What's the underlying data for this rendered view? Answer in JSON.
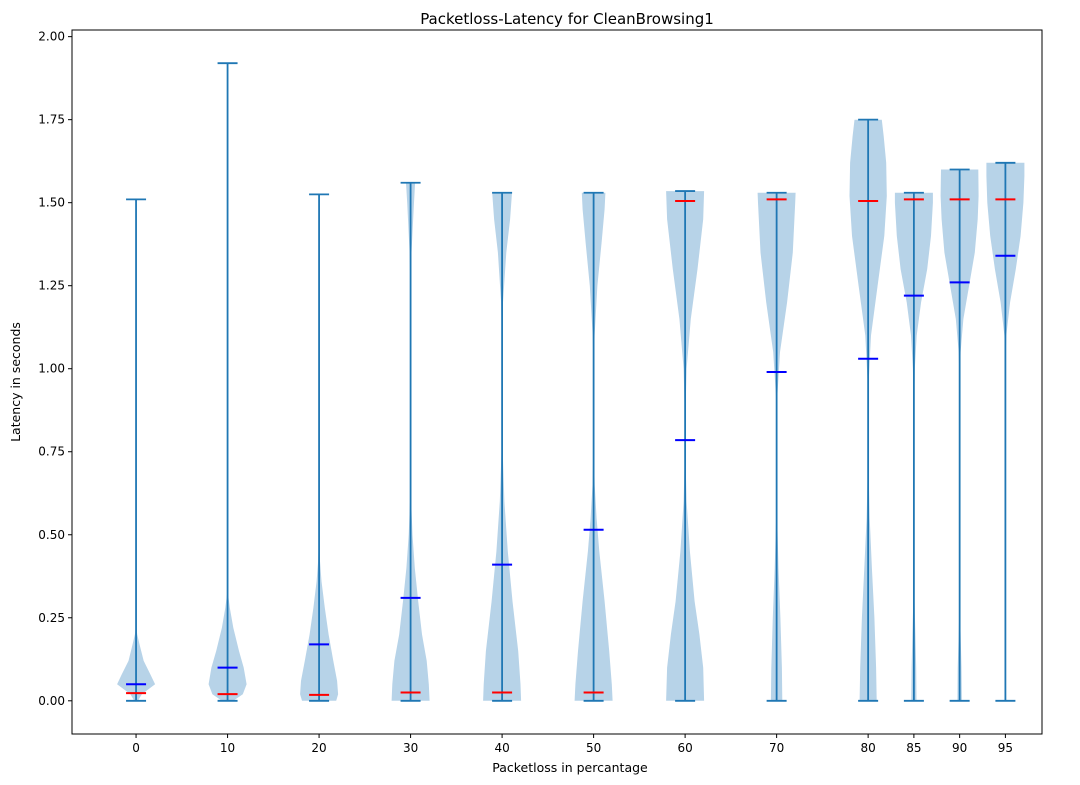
{
  "chart_data": {
    "type": "violin",
    "title": "Packetloss-Latency for CleanBrowsing1",
    "xlabel": "Packetloss in percantage",
    "ylabel": "Latency in seconds",
    "ylim": [
      -0.1,
      2.02
    ],
    "yticks": [
      0.0,
      0.25,
      0.5,
      0.75,
      1.0,
      1.25,
      1.5,
      1.75,
      2.0
    ],
    "ytick_labels": [
      "0.00",
      "0.25",
      "0.50",
      "0.75",
      "1.00",
      "1.25",
      "1.50",
      "1.75",
      "2.00"
    ],
    "xlim": [
      -7,
      99
    ],
    "grid": false,
    "legend": "none",
    "colors": {
      "violin_fill": "#b7d3e8",
      "violin_line": "#1f77b4",
      "mean_marker": "#0000ff",
      "median_marker": "#ff0000"
    },
    "violins": [
      {
        "label": "0",
        "x": 0,
        "min": 0.0,
        "max": 1.51,
        "mean": 0.05,
        "median": 0.023,
        "profile": [
          [
            0.0,
            0.1
          ],
          [
            0.02,
            0.3
          ],
          [
            0.05,
            1.0
          ],
          [
            0.08,
            0.75
          ],
          [
            0.12,
            0.4
          ],
          [
            0.17,
            0.18
          ],
          [
            0.2,
            0.06
          ],
          [
            0.23,
            0.0
          ],
          [
            1.51,
            0.0
          ]
        ]
      },
      {
        "label": "10",
        "x": 10,
        "min": 0.0,
        "max": 1.92,
        "mean": 0.1,
        "median": 0.02,
        "profile": [
          [
            0.0,
            0.3
          ],
          [
            0.02,
            0.8
          ],
          [
            0.05,
            1.0
          ],
          [
            0.1,
            0.85
          ],
          [
            0.15,
            0.6
          ],
          [
            0.22,
            0.3
          ],
          [
            0.28,
            0.12
          ],
          [
            0.32,
            0.03
          ],
          [
            0.36,
            0.0
          ],
          [
            1.92,
            0.0
          ]
        ]
      },
      {
        "label": "20",
        "x": 20,
        "min": 0.0,
        "max": 1.525,
        "mean": 0.17,
        "median": 0.018,
        "profile": [
          [
            0.0,
            0.9
          ],
          [
            0.02,
            1.0
          ],
          [
            0.06,
            0.95
          ],
          [
            0.12,
            0.75
          ],
          [
            0.2,
            0.5
          ],
          [
            0.28,
            0.3
          ],
          [
            0.36,
            0.13
          ],
          [
            0.42,
            0.05
          ],
          [
            0.5,
            0.0
          ],
          [
            1.5,
            0.0
          ],
          [
            1.525,
            0.04
          ]
        ]
      },
      {
        "label": "30",
        "x": 30,
        "min": 0.0,
        "max": 1.56,
        "mean": 0.31,
        "median": 0.025,
        "profile": [
          [
            0.0,
            1.0
          ],
          [
            0.05,
            0.96
          ],
          [
            0.12,
            0.85
          ],
          [
            0.2,
            0.6
          ],
          [
            0.3,
            0.4
          ],
          [
            0.4,
            0.22
          ],
          [
            0.5,
            0.1
          ],
          [
            0.6,
            0.03
          ],
          [
            0.7,
            0.0
          ],
          [
            1.2,
            0.0
          ],
          [
            1.35,
            0.05
          ],
          [
            1.5,
            0.18
          ],
          [
            1.56,
            0.24
          ]
        ]
      },
      {
        "label": "40",
        "x": 40,
        "min": 0.0,
        "max": 1.53,
        "mean": 0.41,
        "median": 0.025,
        "profile": [
          [
            0.0,
            1.0
          ],
          [
            0.05,
            0.97
          ],
          [
            0.15,
            0.85
          ],
          [
            0.3,
            0.55
          ],
          [
            0.45,
            0.3
          ],
          [
            0.6,
            0.12
          ],
          [
            0.75,
            0.03
          ],
          [
            0.85,
            0.0
          ],
          [
            1.05,
            0.0
          ],
          [
            1.2,
            0.05
          ],
          [
            1.35,
            0.22
          ],
          [
            1.45,
            0.42
          ],
          [
            1.53,
            0.52
          ]
        ]
      },
      {
        "label": "50",
        "x": 50,
        "min": 0.0,
        "max": 1.53,
        "mean": 0.515,
        "median": 0.025,
        "profile": [
          [
            0.0,
            1.0
          ],
          [
            0.05,
            0.96
          ],
          [
            0.15,
            0.82
          ],
          [
            0.3,
            0.58
          ],
          [
            0.45,
            0.3
          ],
          [
            0.55,
            0.16
          ],
          [
            0.65,
            0.06
          ],
          [
            0.75,
            0.02
          ],
          [
            0.88,
            0.0
          ],
          [
            0.98,
            0.0
          ],
          [
            1.1,
            0.05
          ],
          [
            1.25,
            0.2
          ],
          [
            1.38,
            0.42
          ],
          [
            1.48,
            0.58
          ],
          [
            1.53,
            0.62
          ]
        ]
      },
      {
        "label": "60",
        "x": 60,
        "min": 0.0,
        "max": 1.535,
        "mean": 0.785,
        "median": 1.505,
        "profile": [
          [
            0.0,
            1.0
          ],
          [
            0.1,
            0.95
          ],
          [
            0.2,
            0.75
          ],
          [
            0.3,
            0.5
          ],
          [
            0.45,
            0.25
          ],
          [
            0.6,
            0.08
          ],
          [
            0.75,
            0.01
          ],
          [
            0.85,
            0.01
          ],
          [
            1.0,
            0.08
          ],
          [
            1.15,
            0.3
          ],
          [
            1.3,
            0.65
          ],
          [
            1.45,
            0.95
          ],
          [
            1.535,
            1.0
          ]
        ]
      },
      {
        "label": "70",
        "x": 70,
        "min": 0.0,
        "max": 1.53,
        "mean": 0.99,
        "median": 1.51,
        "profile": [
          [
            0.0,
            0.3
          ],
          [
            0.1,
            0.28
          ],
          [
            0.25,
            0.2
          ],
          [
            0.4,
            0.1
          ],
          [
            0.55,
            0.03
          ],
          [
            0.7,
            0.0
          ],
          [
            0.8,
            0.0
          ],
          [
            0.92,
            0.04
          ],
          [
            1.05,
            0.18
          ],
          [
            1.2,
            0.55
          ],
          [
            1.35,
            0.85
          ],
          [
            1.5,
            0.98
          ],
          [
            1.53,
            1.0
          ]
        ]
      },
      {
        "label": "80",
        "x": 80,
        "min": 0.0,
        "max": 1.75,
        "mean": 1.03,
        "median": 1.505,
        "profile": [
          [
            0.0,
            0.45
          ],
          [
            0.1,
            0.42
          ],
          [
            0.25,
            0.33
          ],
          [
            0.4,
            0.2
          ],
          [
            0.55,
            0.08
          ],
          [
            0.7,
            0.02
          ],
          [
            0.85,
            0.0
          ],
          [
            0.95,
            0.02
          ],
          [
            1.1,
            0.15
          ],
          [
            1.25,
            0.5
          ],
          [
            1.4,
            0.85
          ],
          [
            1.52,
            0.98
          ],
          [
            1.62,
            0.95
          ],
          [
            1.7,
            0.82
          ],
          [
            1.75,
            0.72
          ]
        ]
      },
      {
        "label": "85",
        "x": 85,
        "min": 0.0,
        "max": 1.53,
        "mean": 1.22,
        "median": 1.51,
        "profile": [
          [
            0.0,
            0.14
          ],
          [
            0.1,
            0.12
          ],
          [
            0.2,
            0.08
          ],
          [
            0.3,
            0.03
          ],
          [
            0.4,
            0.0
          ],
          [
            0.85,
            0.0
          ],
          [
            1.0,
            0.05
          ],
          [
            1.1,
            0.15
          ],
          [
            1.2,
            0.38
          ],
          [
            1.3,
            0.7
          ],
          [
            1.4,
            0.9
          ],
          [
            1.5,
            1.0
          ],
          [
            1.53,
            1.0
          ]
        ]
      },
      {
        "label": "90",
        "x": 90,
        "min": 0.0,
        "max": 1.6,
        "mean": 1.26,
        "median": 1.51,
        "profile": [
          [
            0.0,
            0.12
          ],
          [
            0.1,
            0.1
          ],
          [
            0.2,
            0.05
          ],
          [
            0.3,
            0.01
          ],
          [
            0.4,
            0.0
          ],
          [
            0.95,
            0.0
          ],
          [
            1.05,
            0.05
          ],
          [
            1.15,
            0.2
          ],
          [
            1.25,
            0.5
          ],
          [
            1.35,
            0.8
          ],
          [
            1.45,
            0.95
          ],
          [
            1.52,
            1.0
          ],
          [
            1.6,
            0.98
          ]
        ]
      },
      {
        "label": "95",
        "x": 95,
        "min": 0.0,
        "max": 1.62,
        "mean": 1.34,
        "median": 1.51,
        "profile": [
          [
            0.0,
            0.04
          ],
          [
            0.1,
            0.02
          ],
          [
            0.2,
            0.0
          ],
          [
            1.0,
            0.0
          ],
          [
            1.1,
            0.05
          ],
          [
            1.2,
            0.25
          ],
          [
            1.3,
            0.55
          ],
          [
            1.4,
            0.8
          ],
          [
            1.5,
            0.95
          ],
          [
            1.58,
            1.0
          ],
          [
            1.62,
            1.0
          ]
        ]
      }
    ]
  }
}
